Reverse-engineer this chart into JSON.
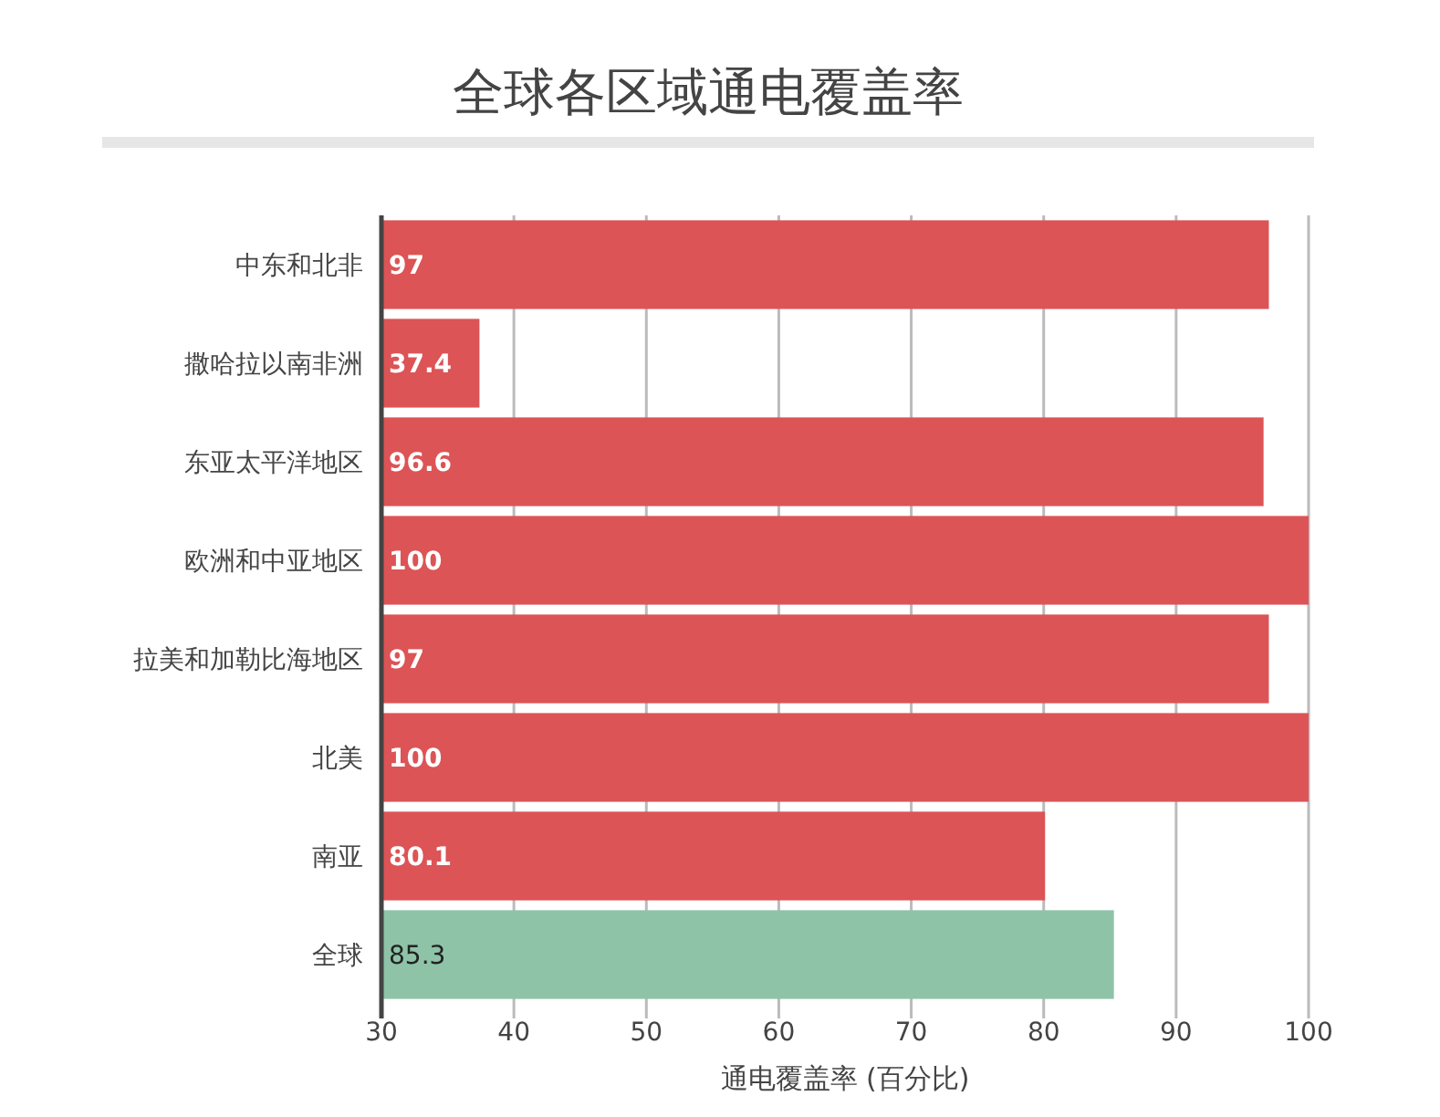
{
  "chart_data": {
    "type": "bar",
    "orientation": "horizontal",
    "title": "全球各区域通电覆盖率",
    "xlabel": "通电覆盖率 (百分比)",
    "categories": [
      "中东和北非",
      "撒哈拉以南非洲",
      "东亚太平洋地区",
      "欧洲和中亚地区",
      "拉美和加勒比海地区",
      "北美",
      "南亚",
      "全球"
    ],
    "values": [
      97,
      37.4,
      96.6,
      100,
      97,
      100,
      80.1,
      85.3
    ],
    "colors": [
      "#dc5456",
      "#dc5456",
      "#dc5456",
      "#dc5456",
      "#dc5456",
      "#dc5456",
      "#dc5456",
      "#8ec3a7"
    ],
    "xlim": [
      30,
      100
    ],
    "xticks": [
      30,
      40,
      50,
      60,
      70,
      80,
      90,
      100
    ],
    "grid": "x",
    "data_labels": true
  }
}
